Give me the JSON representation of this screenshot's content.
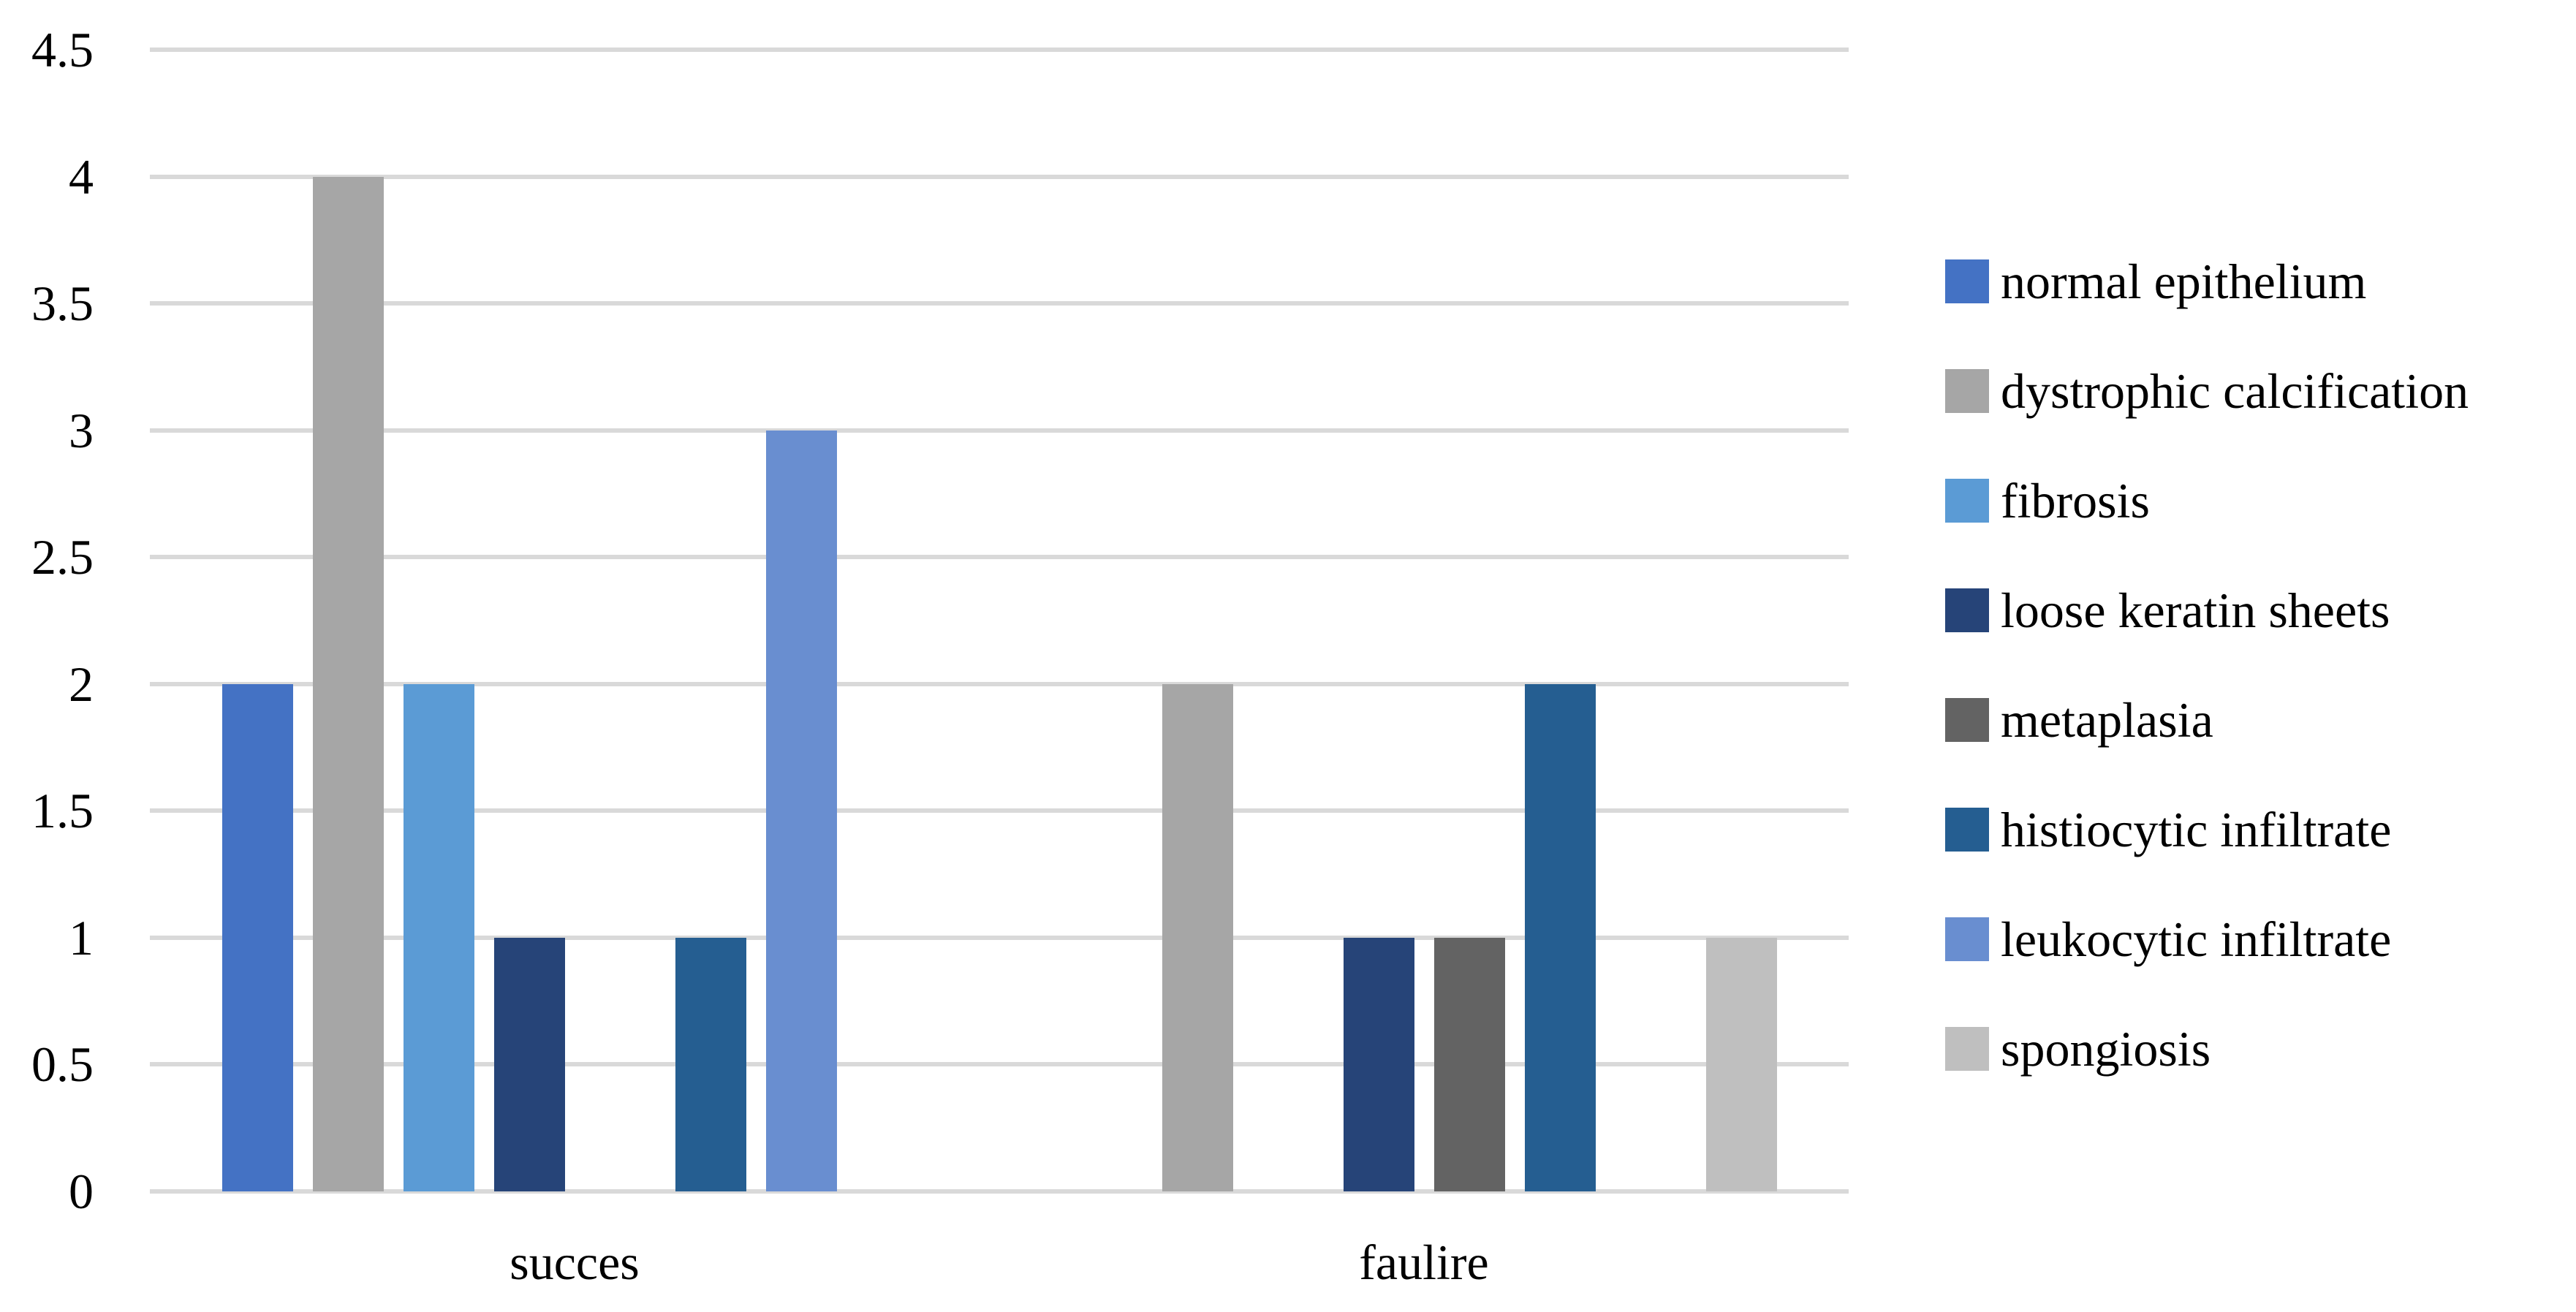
{
  "chart_data": {
    "type": "bar",
    "title": "",
    "xlabel": "",
    "ylabel": "",
    "categories": [
      "succes",
      "faulire"
    ],
    "series": [
      {
        "name": "normal epithelium",
        "color": "#4472C4",
        "values": [
          2,
          0
        ]
      },
      {
        "name": "dystrophic calcification",
        "color": "#A6A6A6",
        "values": [
          4,
          2
        ]
      },
      {
        "name": "fibrosis",
        "color": "#5B9BD5",
        "values": [
          2,
          0
        ]
      },
      {
        "name": "loose keratin sheets",
        "color": "#264478",
        "values": [
          1,
          1
        ]
      },
      {
        "name": "metaplasia",
        "color": "#636363",
        "values": [
          0,
          1
        ]
      },
      {
        "name": "histiocytic infiltrate",
        "color": "#255E91",
        "values": [
          1,
          2
        ]
      },
      {
        "name": "leukocytic infiltrate",
        "color": "#698ED0",
        "values": [
          3,
          0
        ]
      },
      {
        "name": "spongiosis",
        "color": "#BFBFBF",
        "values": [
          0,
          1
        ]
      }
    ],
    "y_axis": {
      "min": 0,
      "max": 4.5,
      "step": 0.5,
      "tick_labels": [
        "0",
        "0.5",
        "1",
        "1.5",
        "2",
        "2.5",
        "3",
        "3.5",
        "4",
        "4.5"
      ]
    },
    "ylim": [
      0,
      4.5
    ],
    "grid": "horizontal",
    "gridline_color": "#D9D9D9",
    "background_color": "#FFFFFF",
    "text_color": "#000000",
    "legend_position": "right"
  }
}
